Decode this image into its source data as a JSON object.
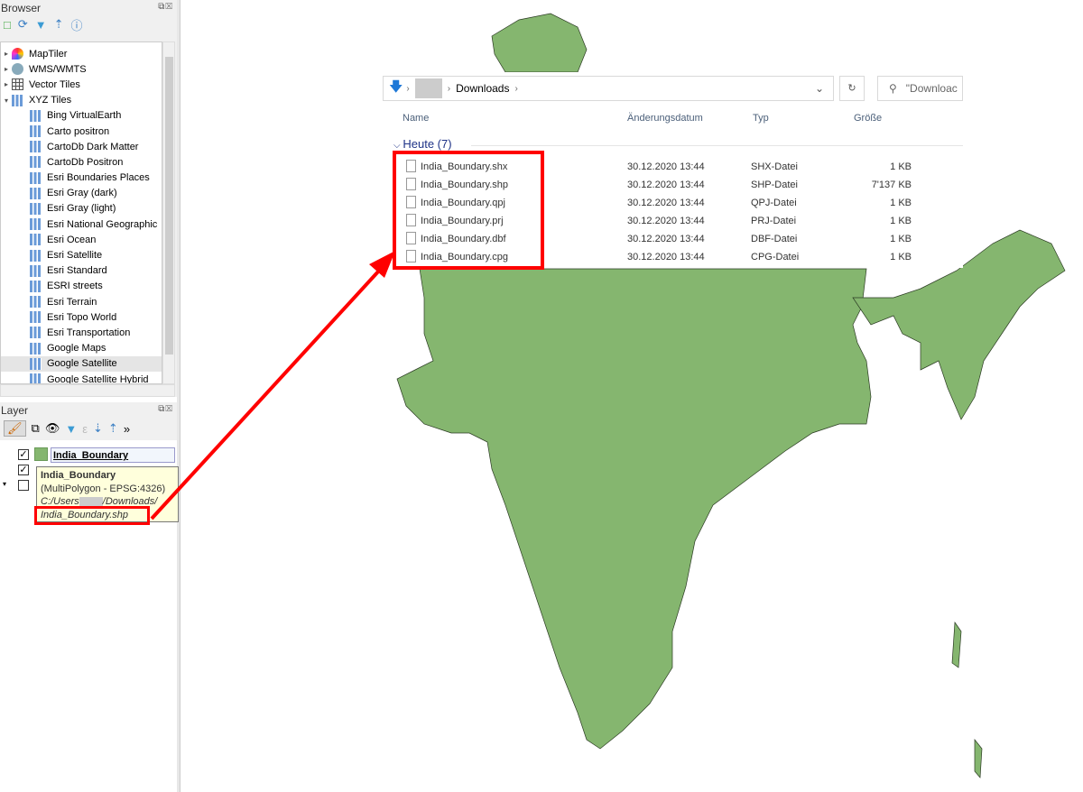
{
  "browser": {
    "title": "Browser",
    "items": [
      {
        "label": "MapTiler",
        "level": 0,
        "arrow": "▸",
        "icon": "maptiler-icon"
      },
      {
        "label": "WMS/WMTS",
        "level": 0,
        "arrow": "▸",
        "icon": "globe-icon"
      },
      {
        "label": "Vector Tiles",
        "level": 0,
        "arrow": "▸",
        "icon": "vector-tiles-icon"
      },
      {
        "label": "XYZ Tiles",
        "level": 0,
        "arrow": "▾",
        "icon": "xyz-icon"
      },
      {
        "label": "Bing VirtualEarth",
        "level": 1
      },
      {
        "label": "Carto positron",
        "level": 1
      },
      {
        "label": "CartoDb Dark Matter",
        "level": 1
      },
      {
        "label": "CartoDb Positron",
        "level": 1
      },
      {
        "label": "Esri Boundaries Places",
        "level": 1
      },
      {
        "label": "Esri Gray (dark)",
        "level": 1
      },
      {
        "label": "Esri Gray (light)",
        "level": 1
      },
      {
        "label": "Esri National Geographic",
        "level": 1
      },
      {
        "label": "Esri Ocean",
        "level": 1
      },
      {
        "label": "Esri Satellite",
        "level": 1
      },
      {
        "label": "Esri Standard",
        "level": 1
      },
      {
        "label": "ESRI streets",
        "level": 1
      },
      {
        "label": "Esri Terrain",
        "level": 1
      },
      {
        "label": "Esri Topo World",
        "level": 1
      },
      {
        "label": "Esri Transportation",
        "level": 1
      },
      {
        "label": "Google Maps",
        "level": 1
      },
      {
        "label": "Google Satellite",
        "level": 1,
        "selected": true
      },
      {
        "label": "Google Satellite Hybrid",
        "level": 1
      }
    ]
  },
  "layers": {
    "title": "Layer",
    "layer_name": "India_Boundary",
    "layer_color": "#85b66f",
    "tooltip": {
      "name": "India_Boundary",
      "type": "(MultiPolygon - EPSG:4326)",
      "path1": "C:/Users",
      "path2": "/Downloads/",
      "file": "India_Boundary.shp"
    }
  },
  "explorer": {
    "breadcrumb": "Downloads",
    "search_placeholder": "\"Downloac",
    "columns": [
      "Name",
      "Änderungsdatum",
      "Typ",
      "Größe"
    ],
    "group": "Heute (7)",
    "files": [
      {
        "name": "India_Boundary.shx",
        "date": "30.12.2020 13:44",
        "type": "SHX-Datei",
        "size": "1 KB"
      },
      {
        "name": "India_Boundary.shp",
        "date": "30.12.2020 13:44",
        "type": "SHP-Datei",
        "size": "7'137 KB"
      },
      {
        "name": "India_Boundary.qpj",
        "date": "30.12.2020 13:44",
        "type": "QPJ-Datei",
        "size": "1 KB"
      },
      {
        "name": "India_Boundary.prj",
        "date": "30.12.2020 13:44",
        "type": "PRJ-Datei",
        "size": "1 KB"
      },
      {
        "name": "India_Boundary.dbf",
        "date": "30.12.2020 13:44",
        "type": "DBF-Datei",
        "size": "1 KB"
      },
      {
        "name": "India_Boundary.cpg",
        "date": "30.12.2020 13:44",
        "type": "CPG-Datei",
        "size": "1 KB"
      }
    ]
  },
  "colors": {
    "map_fill": "#85b66f",
    "highlight": "#ff0000"
  }
}
